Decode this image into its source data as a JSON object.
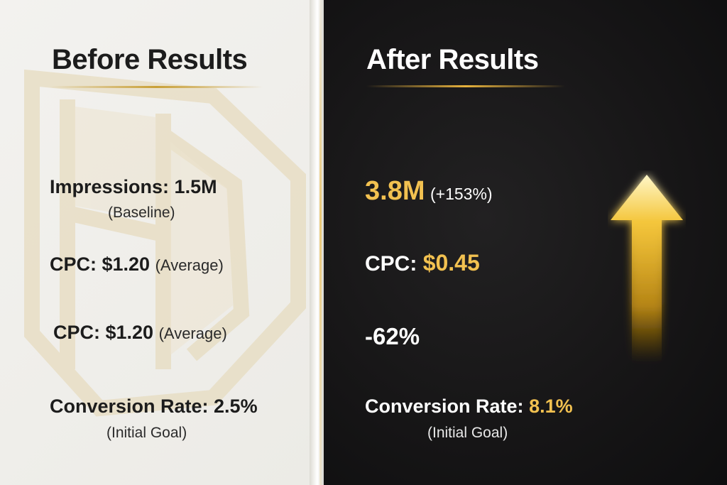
{
  "before": {
    "title": "Before Results",
    "impressions_label": "Impressions: 1.5M",
    "impressions_note": "(Baseline)",
    "cpc1_label": "CPC: $1.20",
    "cpc1_note": "(Average)",
    "cpc2_label": "CPC: $1.20",
    "cpc2_note": "(Average)",
    "conversion_label": "Conversion Rate: 2.5%",
    "conversion_note": "(Initial Goal)"
  },
  "after": {
    "title": "After Results",
    "impressions_value": "3.8M",
    "impressions_change": "(+153%)",
    "cpc_label": "CPC:",
    "cpc_value": "$0.45",
    "cpc_change": "-62%",
    "conversion_label": "Conversion Rate:",
    "conversion_value": "8.1%",
    "conversion_note": "(Initial Goal)"
  },
  "colors": {
    "accent_gold": "#f2c150",
    "dark_bg": "#161516",
    "light_bg": "#f0efeb"
  },
  "icons": {
    "watermark": "logo-watermark-icon",
    "trend": "up-arrow-icon"
  }
}
